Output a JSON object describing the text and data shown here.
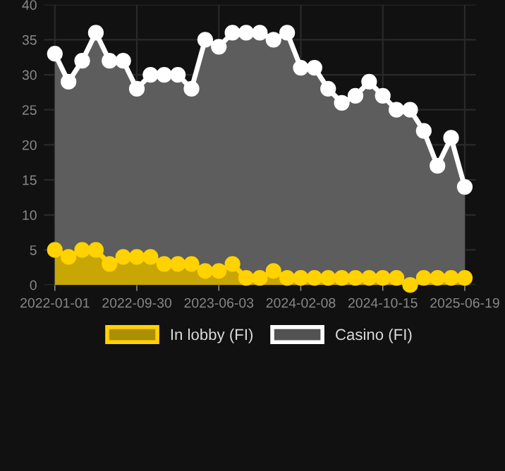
{
  "chart_data": {
    "type": "area",
    "categories": [
      "2022-01-01",
      null,
      null,
      null,
      null,
      null,
      "2022-09-30",
      null,
      null,
      null,
      null,
      null,
      "2023-06-03",
      null,
      null,
      null,
      null,
      null,
      "2024-02-08",
      null,
      null,
      null,
      null,
      null,
      "2024-10-15",
      null,
      null,
      null,
      null,
      null,
      "2025-06-19"
    ],
    "series": [
      {
        "name": "In lobby (FI)",
        "color": "#ffd200",
        "values": [
          5,
          4,
          5,
          5,
          3,
          4,
          4,
          4,
          3,
          3,
          3,
          2,
          2,
          3,
          1,
          1,
          2,
          1,
          1,
          1,
          1,
          1,
          1,
          1,
          1,
          1,
          0,
          1,
          1,
          1,
          1
        ]
      },
      {
        "name": "Casino (FI)",
        "color": "#ffffff",
        "values": [
          33,
          29,
          32,
          36,
          32,
          32,
          28,
          30,
          30,
          30,
          28,
          35,
          34,
          36,
          36,
          36,
          35,
          36,
          31,
          31,
          28,
          26,
          27,
          29,
          27,
          25,
          25,
          22,
          17,
          21,
          14
        ]
      }
    ],
    "ylim": [
      0,
      40
    ],
    "yticks": [
      0,
      5,
      10,
      15,
      20,
      25,
      30,
      35,
      40
    ],
    "grid": true,
    "legend": "bottom",
    "marker": "circle",
    "line_style": "solid"
  }
}
